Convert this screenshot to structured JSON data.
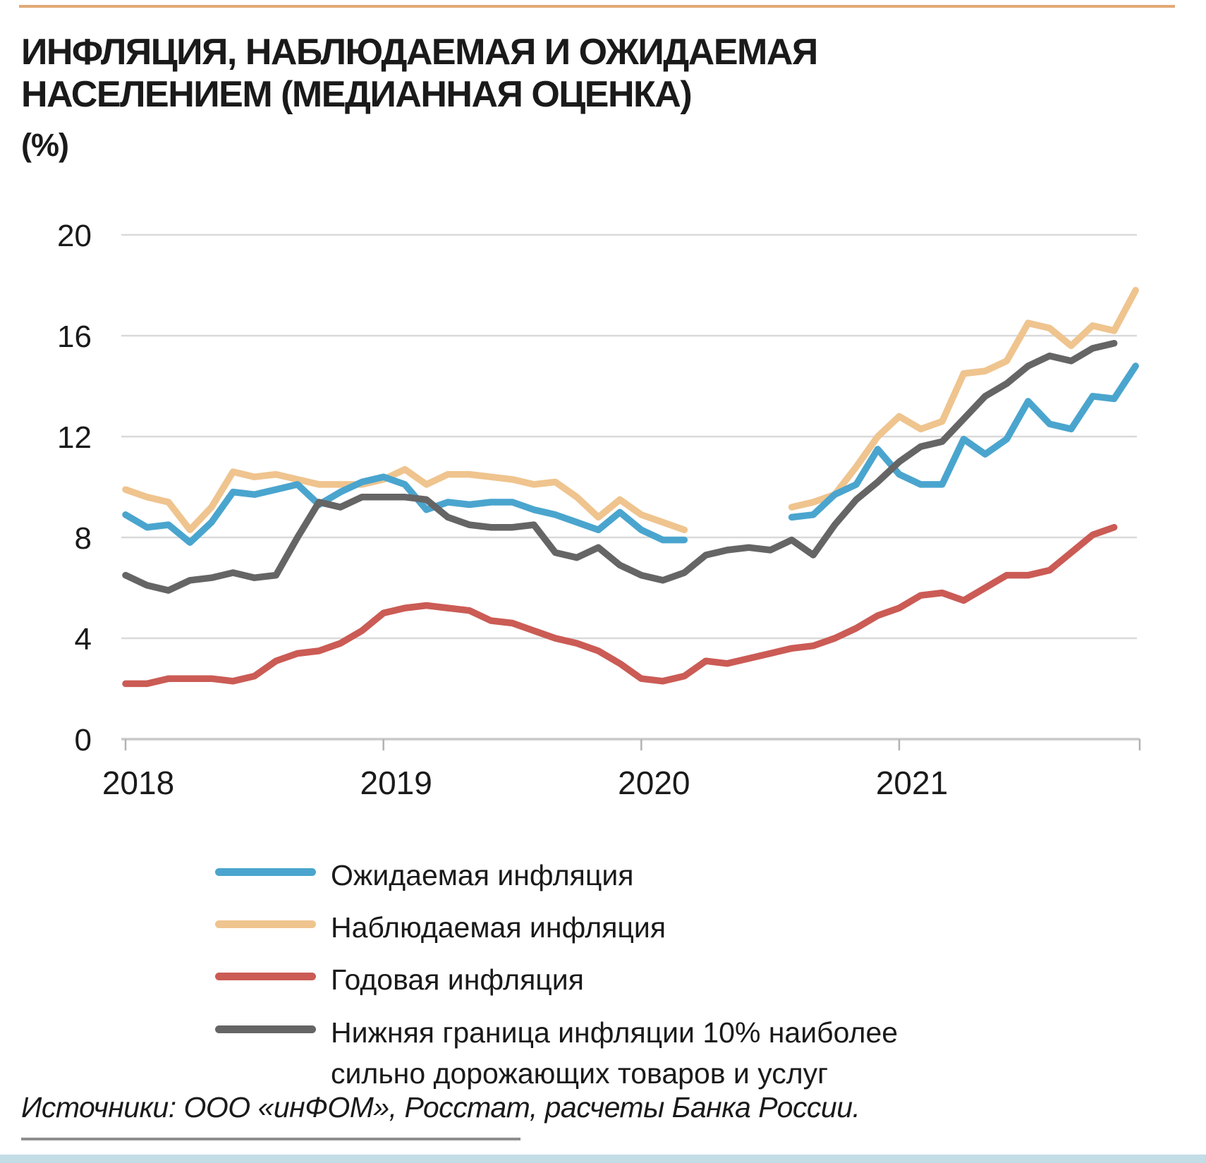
{
  "page": {
    "title_line1": "ИНФЛЯЦИЯ, НАБЛЮДАЕМАЯ И ОЖИДАЕМАЯ",
    "title_line2": "НАСЕЛЕНИЕМ (МЕДИАННАЯ ОЦЕНКА)",
    "unit_label": "(%)",
    "source": "Источники: ООО «инФОМ», Росстат, расчеты Банка России."
  },
  "colors": {
    "expected": "#4AA5CE",
    "observed": "#EFC48E",
    "annual": "#CB5B55",
    "lower10": "#656565",
    "gridline": "#D9D9D9",
    "axis": "#C9C9C9",
    "tick": "#B2B2B2",
    "top_rule": "#E2A977",
    "bottom_bar": "#C3DDE7"
  },
  "legend": {
    "items": [
      {
        "label": "Ожидаемая инфляция",
        "color": "#4AA5CE"
      },
      {
        "label": "Наблюдаемая  инфляция",
        "color": "#EFC48E"
      },
      {
        "label": "Годовая инфляция",
        "color": "#CB5B55"
      },
      {
        "label": "Нижняя граница инфляции 10% наиболее сильно дорожающих товаров и услуг",
        "color": "#656565"
      }
    ]
  },
  "chart_data": {
    "type": "line",
    "title": "Инфляция, наблюдаемая и ожидаемая населением (медианная оценка)",
    "ylabel": "%",
    "xlabel": "",
    "x_unit": "month",
    "x_start": "2018-01",
    "x_end": "2021-12",
    "x_labels": [
      "2018",
      "2019",
      "2020",
      "2021"
    ],
    "x_label_month_index": [
      0,
      12,
      24,
      36
    ],
    "y_ticks": [
      0,
      4,
      8,
      12,
      16,
      20
    ],
    "ylim": [
      0,
      20
    ],
    "grid": "horizontal",
    "note": "Blue and tan series have a survey gap Apr–Jul 2020; red and gray series end Nov 2021",
    "series": [
      {
        "name": "Наблюдаемая инфляция",
        "color": "#EFC48E",
        "values": [
          9.9,
          9.6,
          9.4,
          8.3,
          9.2,
          10.6,
          10.4,
          10.5,
          10.3,
          10.1,
          10.1,
          10.1,
          10.3,
          10.7,
          10.1,
          10.5,
          10.5,
          10.4,
          10.3,
          10.1,
          10.2,
          9.6,
          8.8,
          9.5,
          8.9,
          8.6,
          8.3,
          null,
          null,
          null,
          null,
          9.2,
          9.4,
          9.7,
          10.8,
          12.0,
          12.8,
          12.3,
          12.6,
          14.5,
          14.6,
          15.0,
          16.5,
          16.3,
          15.6,
          16.4,
          16.2,
          17.8
        ]
      },
      {
        "name": "Ожидаемая инфляция",
        "color": "#4AA5CE",
        "values": [
          8.9,
          8.4,
          8.5,
          7.8,
          8.6,
          9.8,
          9.7,
          9.9,
          10.1,
          9.3,
          9.8,
          10.2,
          10.4,
          10.1,
          9.1,
          9.4,
          9.3,
          9.4,
          9.4,
          9.1,
          8.9,
          8.6,
          8.3,
          9.0,
          8.3,
          7.9,
          7.9,
          null,
          null,
          null,
          null,
          8.8,
          8.9,
          9.7,
          10.1,
          11.5,
          10.5,
          10.1,
          10.1,
          11.9,
          11.3,
          11.9,
          13.4,
          12.5,
          12.3,
          13.6,
          13.5,
          14.8
        ]
      },
      {
        "name": "Нижняя граница инфляции 10% наиболее сильно дорожающих товаров и услуг",
        "color": "#656565",
        "values": [
          6.5,
          6.1,
          5.9,
          6.3,
          6.4,
          6.6,
          6.4,
          6.5,
          8.0,
          9.4,
          9.2,
          9.6,
          9.6,
          9.6,
          9.5,
          8.8,
          8.5,
          8.4,
          8.4,
          8.5,
          7.4,
          7.2,
          7.6,
          6.9,
          6.5,
          6.3,
          6.6,
          7.3,
          7.5,
          7.6,
          7.5,
          7.9,
          7.3,
          8.5,
          9.5,
          10.2,
          11.0,
          11.6,
          11.8,
          12.7,
          13.6,
          14.1,
          14.8,
          15.2,
          15.0,
          15.5,
          15.7,
          null
        ]
      },
      {
        "name": "Годовая инфляция",
        "color": "#CB5B55",
        "values": [
          2.2,
          2.2,
          2.4,
          2.4,
          2.4,
          2.3,
          2.5,
          3.1,
          3.4,
          3.5,
          3.8,
          4.3,
          5.0,
          5.2,
          5.3,
          5.2,
          5.1,
          4.7,
          4.6,
          4.3,
          4.0,
          3.8,
          3.5,
          3.0,
          2.4,
          2.3,
          2.5,
          3.1,
          3.0,
          3.2,
          3.4,
          3.6,
          3.7,
          4.0,
          4.4,
          4.9,
          5.2,
          5.7,
          5.8,
          5.5,
          6.0,
          6.5,
          6.5,
          6.7,
          7.4,
          8.1,
          8.4,
          null
        ]
      }
    ]
  }
}
